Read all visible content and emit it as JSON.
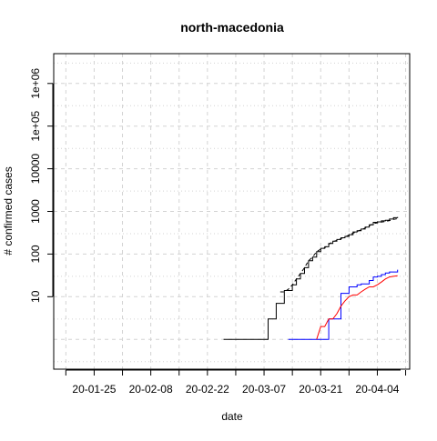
{
  "chart_data": {
    "type": "line",
    "title": "north-macedonia",
    "xlabel": "date",
    "ylabel": "# confirmed cases",
    "y_scale": "log",
    "ylim": [
      0.2,
      5000000
    ],
    "xlim": [
      "2020-01-15",
      "2020-04-12"
    ],
    "x_ticks": [
      {
        "date": "2020-01-25",
        "label": "20-01-25"
      },
      {
        "date": "2020-02-08",
        "label": "20-02-08"
      },
      {
        "date": "2020-02-22",
        "label": "20-02-22"
      },
      {
        "date": "2020-03-07",
        "label": "20-03-07"
      },
      {
        "date": "2020-03-21",
        "label": "20-03-21"
      },
      {
        "date": "2020-04-04",
        "label": "20-04-04"
      }
    ],
    "y_ticks": [
      {
        "value": 10,
        "label": "10"
      },
      {
        "value": 100,
        "label": "100"
      },
      {
        "value": 1000,
        "label": "1000"
      },
      {
        "value": 10000,
        "label": "10000"
      },
      {
        "value": 100000,
        "label": "1e+05"
      },
      {
        "value": 1000000,
        "label": "1e+06"
      }
    ],
    "grid": true,
    "series": [
      {
        "color": "#000000",
        "dash": "solid",
        "step": true,
        "x": [
          "2020-02-26",
          "2020-03-04",
          "2020-03-08",
          "2020-03-10",
          "2020-03-11",
          "2020-03-12",
          "2020-03-13",
          "2020-03-14",
          "2020-03-15",
          "2020-03-16",
          "2020-03-17",
          "2020-03-18",
          "2020-03-19",
          "2020-03-20",
          "2020-03-21",
          "2020-03-22",
          "2020-03-23",
          "2020-03-24",
          "2020-03-25",
          "2020-03-26",
          "2020-03-27",
          "2020-03-28",
          "2020-03-29",
          "2020-03-30",
          "2020-03-31",
          "2020-04-01",
          "2020-04-02",
          "2020-04-03",
          "2020-04-04",
          "2020-04-05",
          "2020-04-06",
          "2020-04-07",
          "2020-04-08",
          "2020-04-09"
        ],
        "values": [
          1,
          1,
          3,
          7,
          7,
          14,
          14,
          19,
          26,
          35,
          48,
          70,
          85,
          114,
          136,
          148,
          177,
          201,
          219,
          241,
          259,
          285,
          329,
          354,
          386,
          430,
          483,
          555,
          570,
          599,
          617,
          663,
          711,
          741
        ]
      },
      {
        "color": "#000000",
        "dash": "dashed",
        "step": false,
        "x": [
          "2020-03-11",
          "2020-03-12",
          "2020-03-13",
          "2020-03-14",
          "2020-03-15",
          "2020-03-16",
          "2020-03-17",
          "2020-03-18",
          "2020-03-19",
          "2020-03-20",
          "2020-03-21",
          "2020-03-22",
          "2020-03-23",
          "2020-03-24",
          "2020-03-25",
          "2020-03-26",
          "2020-03-27",
          "2020-03-28",
          "2020-03-29",
          "2020-03-30",
          "2020-03-31",
          "2020-04-01",
          "2020-04-02",
          "2020-04-03",
          "2020-04-04",
          "2020-04-05",
          "2020-04-06",
          "2020-04-07",
          "2020-04-08",
          "2020-04-09"
        ],
        "values": [
          13,
          13,
          15,
          19,
          26,
          35,
          48,
          70,
          85,
          114,
          130,
          140,
          170,
          195,
          210,
          230,
          250,
          280,
          310,
          340,
          370,
          410,
          460,
          520,
          540,
          560,
          580,
          610,
          650,
          680
        ]
      },
      {
        "color": "#0000ff",
        "dash": "solid",
        "step": true,
        "x": [
          "2020-03-13",
          "2020-03-21",
          "2020-03-22",
          "2020-03-23",
          "2020-03-24",
          "2020-03-25",
          "2020-03-26",
          "2020-03-27",
          "2020-03-28",
          "2020-03-29",
          "2020-03-30",
          "2020-03-31",
          "2020-04-01",
          "2020-04-02",
          "2020-04-03",
          "2020-04-04",
          "2020-04-05",
          "2020-04-06",
          "2020-04-07",
          "2020-04-08",
          "2020-04-09"
        ],
        "values": [
          1,
          1,
          1,
          3,
          3,
          3,
          12,
          12,
          17,
          17,
          19,
          20,
          20,
          24,
          29,
          30,
          33,
          36,
          38,
          38,
          43
        ]
      },
      {
        "color": "#ff0000",
        "dash": "solid",
        "step": false,
        "x": [
          "2020-03-20",
          "2020-03-21",
          "2020-03-22",
          "2020-03-23",
          "2020-03-24",
          "2020-03-25",
          "2020-03-26",
          "2020-03-27",
          "2020-03-28",
          "2020-03-29",
          "2020-03-30",
          "2020-03-31",
          "2020-04-01",
          "2020-04-02",
          "2020-04-03",
          "2020-04-04",
          "2020-04-05",
          "2020-04-06",
          "2020-04-07",
          "2020-04-08",
          "2020-04-09"
        ],
        "values": [
          1,
          2,
          2,
          3,
          3,
          4,
          6,
          8,
          10,
          11,
          11,
          13,
          15,
          17,
          17,
          19,
          22,
          26,
          29,
          30,
          31
        ]
      }
    ]
  }
}
